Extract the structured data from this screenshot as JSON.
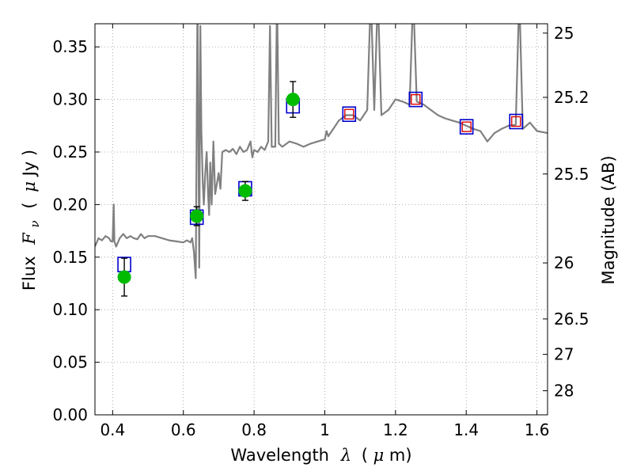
{
  "chart_data": {
    "type": "scatter",
    "xlabel_text": "Wavelength",
    "xlabel_symbol": "λ",
    "xlabel_unit_open": "(",
    "xlabel_unit_mu": "μ",
    "xlabel_unit_rest": "m)",
    "ylabel_text": "Flux",
    "ylabel_symbol": "F",
    "ylabel_subscript": "ν",
    "ylabel_unit_open": "(",
    "ylabel_unit_mu": "μ",
    "ylabel_unit_rest": "Jy )",
    "y2label": "Magnitude (AB)",
    "xlim": [
      0.35,
      1.63
    ],
    "ylim": [
      0.0,
      0.372
    ],
    "grid": true,
    "x_ticks": [
      0.4,
      0.6,
      0.8,
      1.0,
      1.2,
      1.4,
      1.6
    ],
    "x_tick_labels": [
      "0.4",
      "0.6",
      "0.8",
      "1",
      "1.2",
      "1.4",
      "1.6"
    ],
    "y_ticks": [
      0.0,
      0.05,
      0.1,
      0.15,
      0.2,
      0.25,
      0.3,
      0.35
    ],
    "y_tick_labels": [
      "0.00",
      "0.05",
      "0.10",
      "0.15",
      "0.20",
      "0.25",
      "0.30",
      "0.35"
    ],
    "y2_ticks": [
      {
        "label": "25",
        "flux": 0.3631
      },
      {
        "label": "25.2",
        "flux": 0.302
      },
      {
        "label": "25.5",
        "flux": 0.2291
      },
      {
        "label": "26",
        "flux": 0.1445
      },
      {
        "label": "26.5",
        "flux": 0.0912
      },
      {
        "label": "27",
        "flux": 0.0575
      },
      {
        "label": "28",
        "flux": 0.0229
      }
    ],
    "colors": {
      "model_spectrum": "#808080",
      "observed_points": "#00bb00",
      "model_photometry": "#0000cc",
      "model_photometry_inner": "#dd0000",
      "errorbar": "#000000",
      "grid": "#999999"
    },
    "series": [
      {
        "kind": "spectrum",
        "x": [
          0.35,
          0.36,
          0.37,
          0.38,
          0.39,
          0.395,
          0.4,
          0.403,
          0.405,
          0.41,
          0.42,
          0.43,
          0.44,
          0.45,
          0.46,
          0.47,
          0.48,
          0.49,
          0.5,
          0.52,
          0.54,
          0.56,
          0.58,
          0.6,
          0.61,
          0.62,
          0.625,
          0.63,
          0.635,
          0.64,
          0.645,
          0.648,
          0.651,
          0.655,
          0.658,
          0.662,
          0.666,
          0.67,
          0.673,
          0.676,
          0.68,
          0.685,
          0.69,
          0.7,
          0.705,
          0.71,
          0.72,
          0.73,
          0.74,
          0.75,
          0.76,
          0.77,
          0.78,
          0.79,
          0.795,
          0.8,
          0.81,
          0.82,
          0.83,
          0.84,
          0.845,
          0.85,
          0.86,
          0.865,
          0.87,
          0.88,
          0.9,
          0.92,
          0.94,
          0.96,
          0.98,
          1.0,
          1.005,
          1.01,
          1.02,
          1.04,
          1.06,
          1.08,
          1.1,
          1.12,
          1.13,
          1.14,
          1.15,
          1.16,
          1.18,
          1.2,
          1.22,
          1.24,
          1.25,
          1.26,
          1.28,
          1.3,
          1.32,
          1.34,
          1.36,
          1.38,
          1.4,
          1.42,
          1.44,
          1.46,
          1.48,
          1.5,
          1.52,
          1.54,
          1.55,
          1.56,
          1.58,
          1.6,
          1.63
        ],
        "y": [
          0.16,
          0.168,
          0.166,
          0.17,
          0.168,
          0.165,
          0.165,
          0.2,
          0.165,
          0.16,
          0.168,
          0.172,
          0.168,
          0.17,
          0.168,
          0.167,
          0.172,
          0.168,
          0.17,
          0.17,
          0.168,
          0.166,
          0.165,
          0.164,
          0.166,
          0.164,
          0.168,
          0.155,
          0.13,
          0.4,
          0.14,
          0.37,
          0.27,
          0.22,
          0.2,
          0.23,
          0.25,
          0.21,
          0.19,
          0.24,
          0.2,
          0.26,
          0.21,
          0.23,
          0.215,
          0.25,
          0.252,
          0.25,
          0.253,
          0.248,
          0.255,
          0.25,
          0.252,
          0.26,
          0.245,
          0.252,
          0.25,
          0.255,
          0.252,
          0.26,
          0.37,
          0.255,
          0.255,
          0.4,
          0.258,
          0.255,
          0.26,
          0.258,
          0.255,
          0.258,
          0.26,
          0.262,
          0.27,
          0.265,
          0.27,
          0.28,
          0.285,
          0.285,
          0.28,
          0.29,
          0.4,
          0.29,
          0.4,
          0.285,
          0.29,
          0.3,
          0.298,
          0.295,
          0.4,
          0.298,
          0.295,
          0.29,
          0.285,
          0.282,
          0.28,
          0.278,
          0.275,
          0.272,
          0.27,
          0.26,
          0.268,
          0.272,
          0.275,
          0.276,
          0.4,
          0.272,
          0.278,
          0.27,
          0.268
        ]
      },
      {
        "kind": "model_photometry",
        "x": [
          0.433,
          0.638,
          0.775,
          0.91,
          1.069,
          1.257,
          1.401,
          1.541
        ],
        "y": [
          0.143,
          0.188,
          0.215,
          0.294,
          0.286,
          0.3,
          0.274,
          0.279
        ]
      },
      {
        "kind": "model_photometry_inner",
        "x": [
          1.069,
          1.257,
          1.401,
          1.541
        ],
        "y": [
          0.286,
          0.3,
          0.274,
          0.279
        ]
      },
      {
        "kind": "observed_points",
        "x": [
          0.433,
          0.638,
          0.775,
          0.91
        ],
        "y": [
          0.131,
          0.189,
          0.213,
          0.3
        ],
        "yerr": [
          0.018,
          0.009,
          0.009,
          0.017
        ]
      }
    ]
  }
}
